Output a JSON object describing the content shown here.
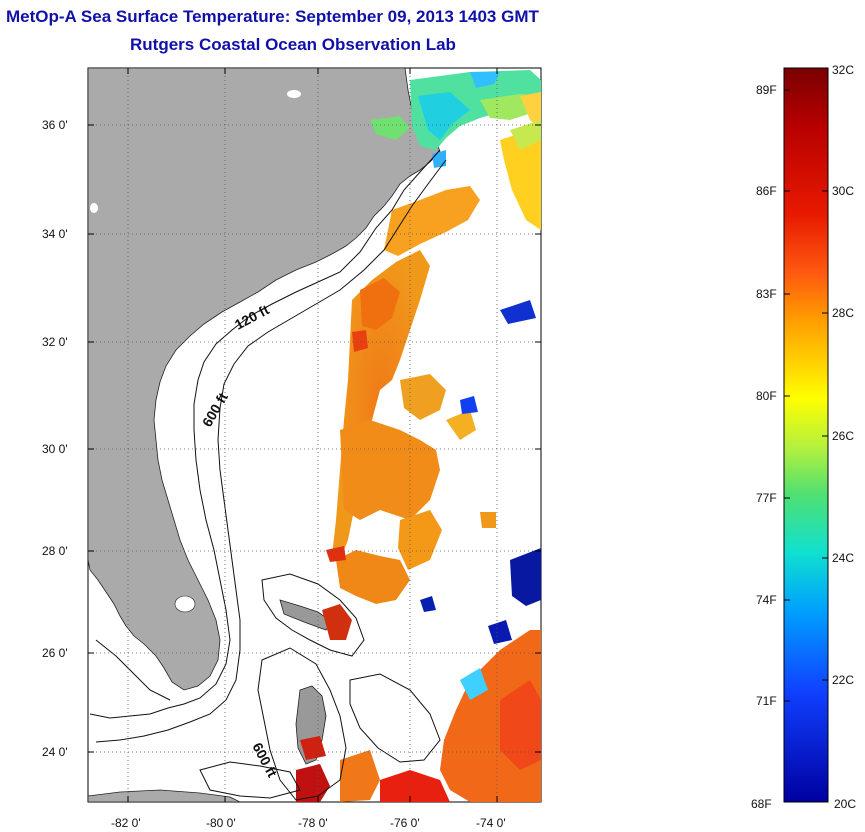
{
  "header": {
    "title": "MetOp-A Sea Surface Temperature:  September 09, 2013 1403 GMT",
    "subtitle": "Rutgers Coastal Ocean Observation Lab"
  },
  "map": {
    "lat_labels": [
      "36 0'",
      "34 0'",
      "32 0'",
      "30 0'",
      "28 0'",
      "26 0'",
      "24 0'"
    ],
    "lon_labels": [
      "-82 0'",
      "-80 0'",
      "-78 0'",
      "-76 0'",
      "-74 0'"
    ],
    "contour_labels": [
      "120 ft",
      "600 ft",
      "600 ft"
    ]
  },
  "colorbar": {
    "fahrenheit_labels": [
      "89F",
      "86F",
      "83F",
      "80F",
      "77F",
      "74F",
      "71F",
      "68F"
    ],
    "celsius_labels": [
      "32C",
      "30C",
      "28C",
      "26C",
      "24C",
      "22C",
      "20C"
    ]
  },
  "colors": {
    "land": "#aaaaaa",
    "title": "#1111aa",
    "grid": "#555555"
  }
}
